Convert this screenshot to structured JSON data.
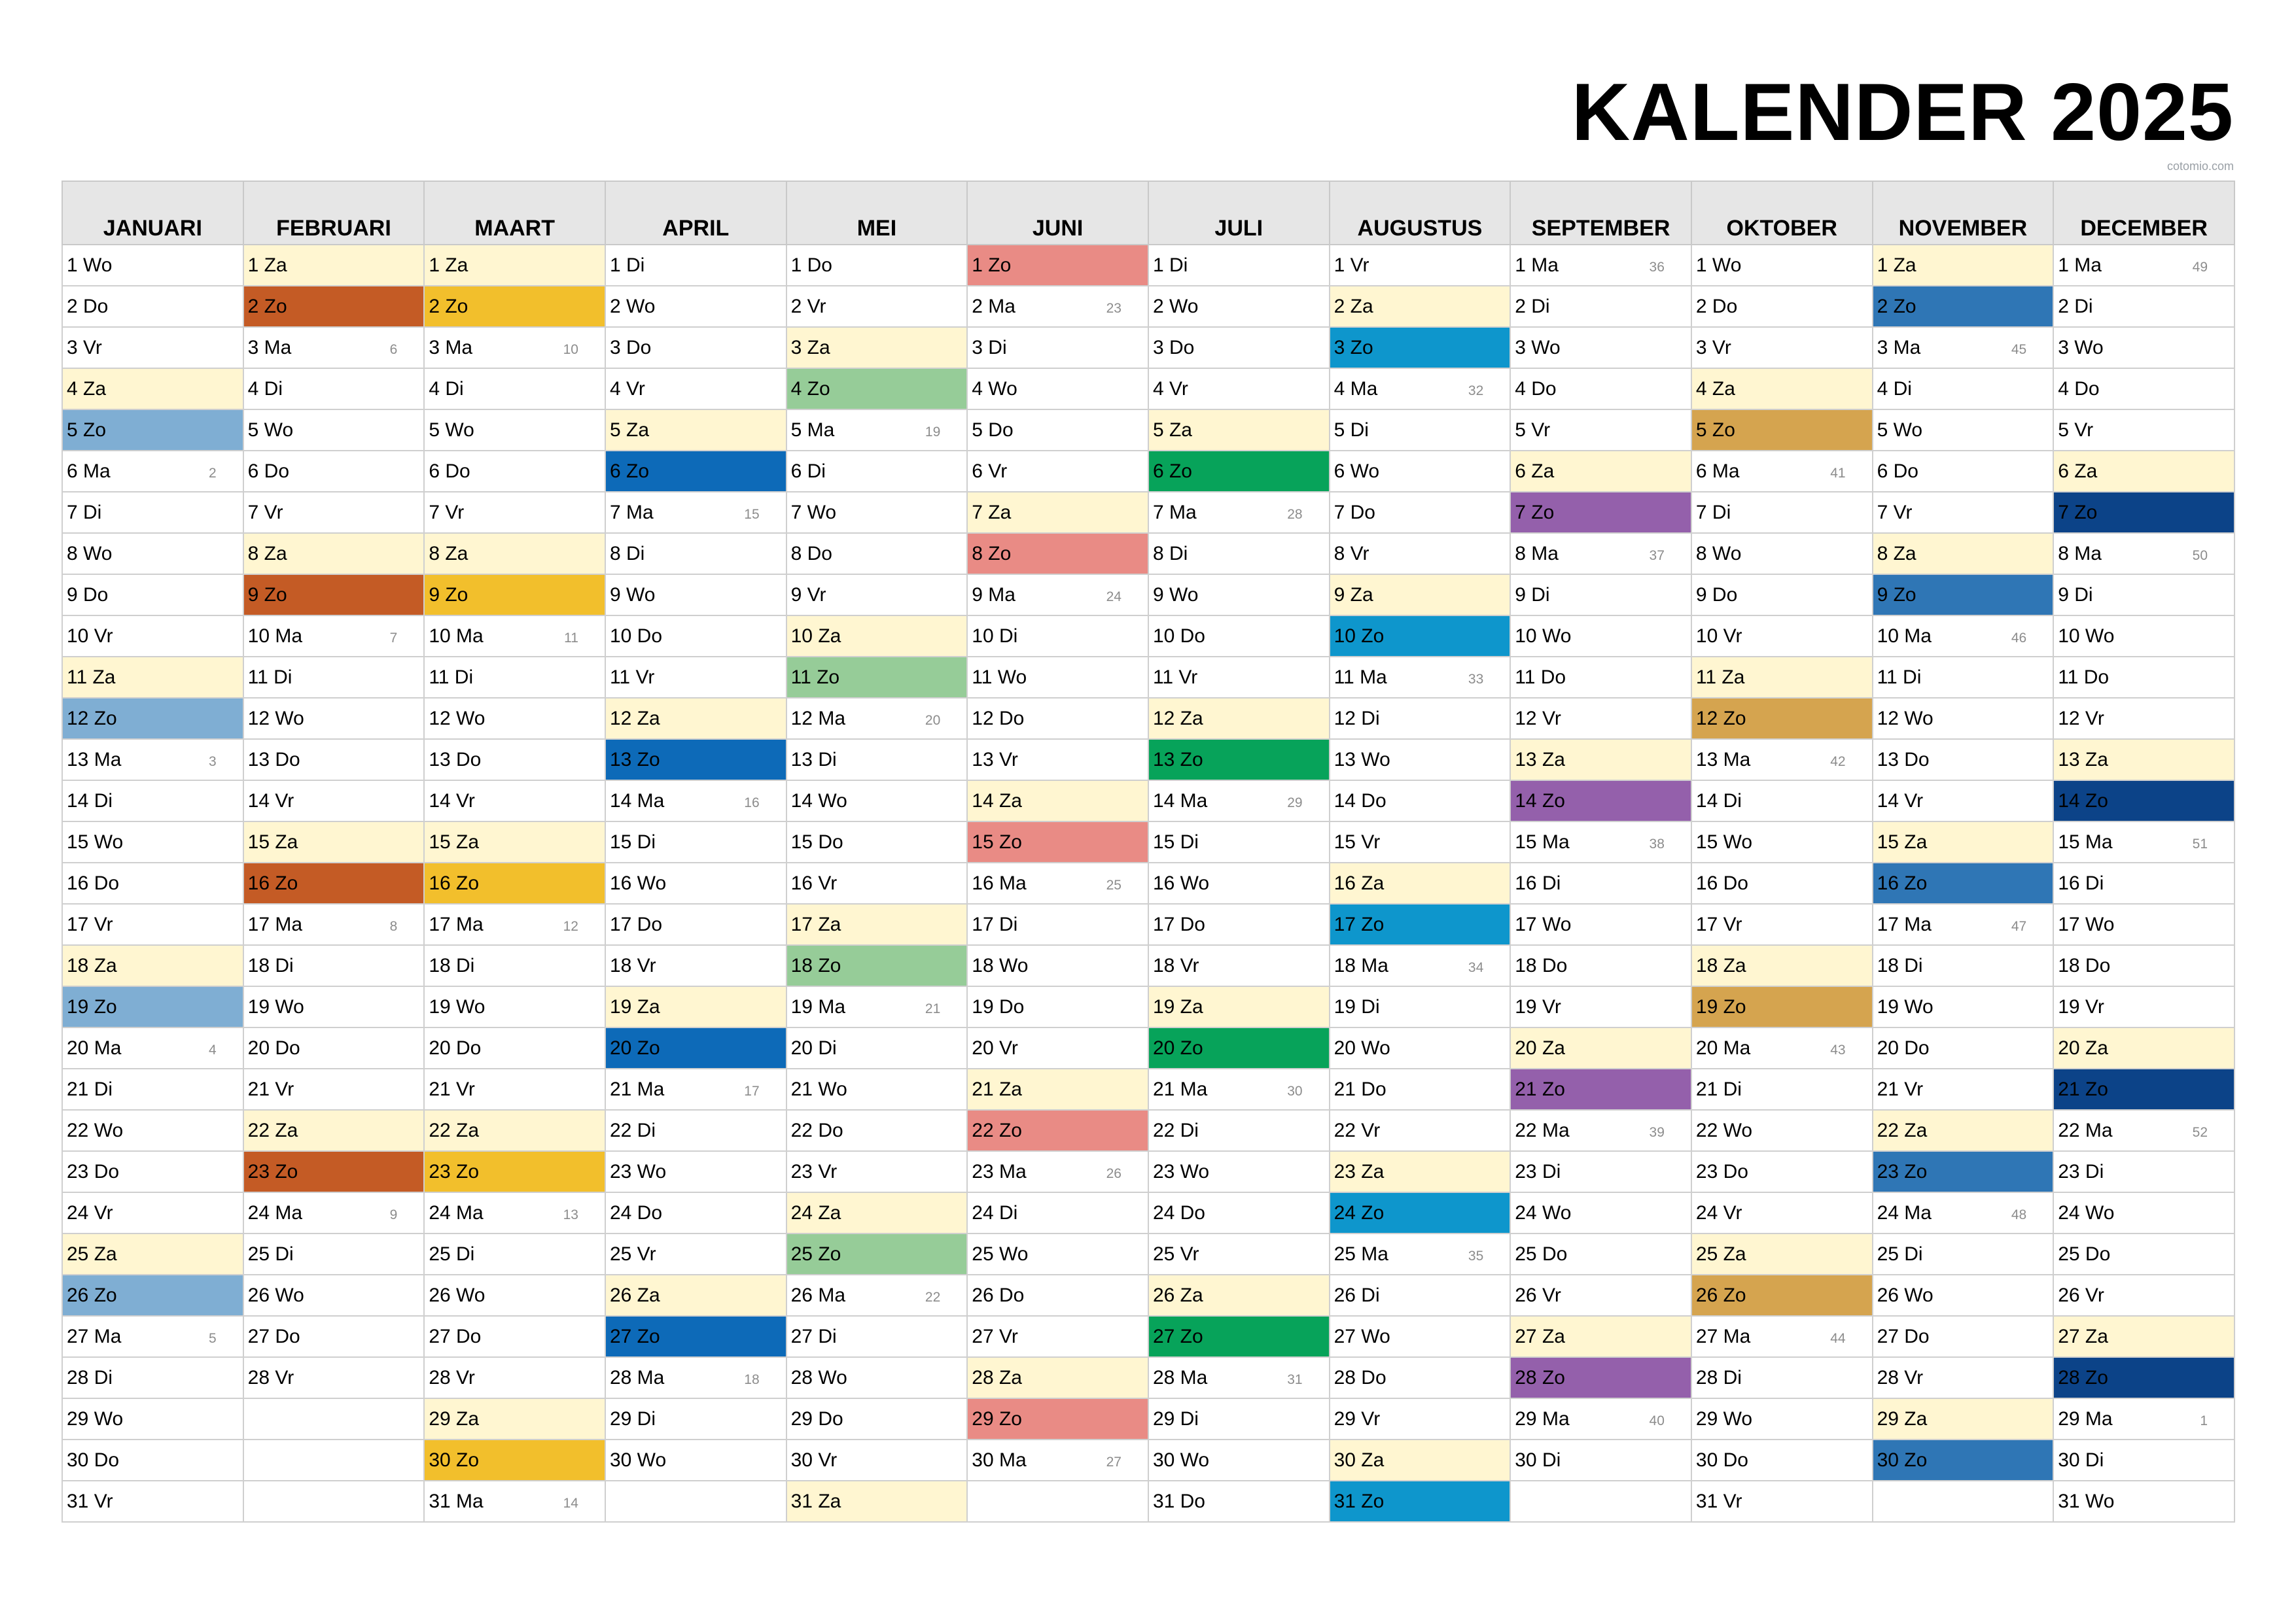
{
  "page": {
    "title": "KALENDER 2025",
    "credit": "cotomio.com"
  },
  "colors": {
    "saturday": "#fff6d1",
    "header_bg": "#e6e6e6",
    "grid": "#cfcfcf",
    "sunday_by_month": [
      "#7faed3",
      "#c45b25",
      "#f2bf2c",
      "#0d6ab8",
      "#96cc98",
      "#e98b85",
      "#07a35a",
      "#0e96cc",
      "#9460ab",
      "#d5a44f",
      "#2f76b5",
      "#0c4388"
    ]
  },
  "day_abbr": [
    "Ma",
    "Di",
    "Wo",
    "Do",
    "Vr",
    "Za",
    "Zo"
  ],
  "months": [
    {
      "name": "JANUARI",
      "days": 31,
      "first_dow": 2,
      "first_week": 1
    },
    {
      "name": "FEBRUARI",
      "days": 28,
      "first_dow": 5,
      "first_week": 5
    },
    {
      "name": "MAART",
      "days": 31,
      "first_dow": 5,
      "first_week": 9
    },
    {
      "name": "APRIL",
      "days": 30,
      "first_dow": 1,
      "first_week": 14
    },
    {
      "name": "MEI",
      "days": 31,
      "first_dow": 3,
      "first_week": 18
    },
    {
      "name": "JUNI",
      "days": 30,
      "first_dow": 6,
      "first_week": 22
    },
    {
      "name": "JULI",
      "days": 31,
      "first_dow": 1,
      "first_week": 27
    },
    {
      "name": "AUGUSTUS",
      "days": 31,
      "first_dow": 4,
      "first_week": 31
    },
    {
      "name": "SEPTEMBER",
      "days": 30,
      "first_dow": 0,
      "first_week": 36
    },
    {
      "name": "OKTOBER",
      "days": 31,
      "first_dow": 2,
      "first_week": 40
    },
    {
      "name": "NOVEMBER",
      "days": 30,
      "first_dow": 5,
      "first_week": 44
    },
    {
      "name": "DECEMBER",
      "days": 31,
      "first_dow": 0,
      "first_week": 49
    }
  ],
  "max_rows": 31
}
